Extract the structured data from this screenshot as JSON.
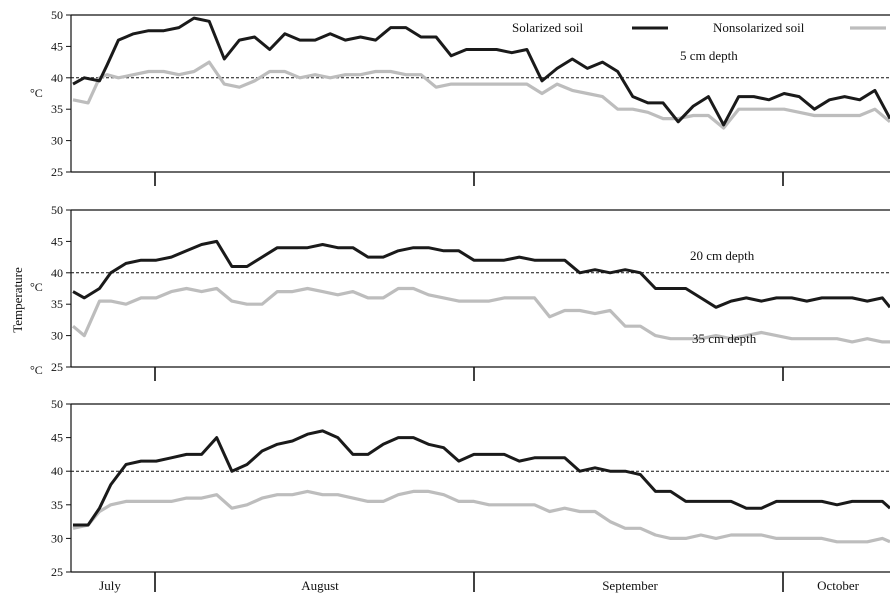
{
  "chart_data": {
    "type": "line",
    "ylabel": "Temperature",
    "unit": "°C",
    "months": [
      "July",
      "August",
      "September",
      "October"
    ],
    "ylim": [
      25,
      50
    ],
    "yticks": [
      25,
      30,
      35,
      40,
      45,
      50
    ],
    "threshold": 40,
    "x_range_days": [
      0,
      108
    ],
    "legend": {
      "position": "top-right",
      "entries": [
        "Solarized soil",
        "Nonsolarized soil"
      ]
    },
    "colors": {
      "solarized": "#1a1a1a",
      "nonsolarized": "#bdbdbd"
    },
    "panels": [
      {
        "label": "5 cm depth",
        "series": [
          {
            "name": "Solarized soil",
            "x": [
              0,
              1.5,
              3.5,
              4.5,
              6,
              8,
              10,
              12,
              14,
              16,
              18,
              20,
              22,
              24,
              26,
              28,
              30,
              32,
              34,
              36,
              38,
              40,
              42,
              44,
              46,
              48,
              50,
              52,
              54,
              56,
              58,
              60,
              62,
              64,
              66,
              68,
              70,
              72,
              74,
              76,
              78,
              80,
              82,
              84,
              86,
              88,
              90,
              92,
              94,
              96,
              98,
              100,
              102,
              104,
              106,
              108
            ],
            "y": [
              39,
              40,
              39.5,
              42,
              46,
              47,
              47.5,
              47.5,
              48,
              49.5,
              49,
              43,
              46,
              46.5,
              44.5,
              47,
              46,
              46,
              47,
              46,
              46.5,
              46,
              48,
              48,
              46.5,
              46.5,
              43.5,
              44.5,
              44.5,
              44.5,
              44,
              44.5,
              39.5,
              41.5,
              43,
              41.5,
              42.5,
              41,
              37,
              36,
              36,
              33,
              35.5,
              37,
              32.5,
              37,
              37,
              36.5,
              37.5,
              37,
              35,
              36.5,
              37,
              36.5,
              38,
              33.5
            ]
          },
          {
            "name": "Nonsolarized soil",
            "x": [
              0,
              2,
              3.5,
              4.5,
              6,
              8,
              10,
              12,
              14,
              16,
              18,
              20,
              22,
              24,
              26,
              28,
              30,
              32,
              34,
              36,
              38,
              40,
              42,
              44,
              46,
              48,
              50,
              52,
              54,
              56,
              58,
              60,
              62,
              64,
              66,
              68,
              70,
              72,
              74,
              76,
              78,
              80,
              82,
              84,
              86,
              88,
              90,
              92,
              94,
              96,
              98,
              100,
              102,
              104,
              106,
              108
            ],
            "y": [
              36.5,
              36,
              40,
              40.5,
              40,
              40.5,
              41,
              41,
              40.5,
              41,
              42.5,
              39,
              38.5,
              39.5,
              41,
              41,
              40,
              40.5,
              40,
              40.5,
              40.5,
              41,
              41,
              40.5,
              40.5,
              38.5,
              39,
              39,
              39,
              39,
              39,
              39,
              37.5,
              39,
              38,
              37.5,
              37,
              35,
              35,
              34.5,
              33.5,
              33.5,
              34,
              34,
              32,
              35,
              35,
              35,
              35,
              34.5,
              34,
              34,
              34,
              34,
              35,
              33
            ]
          }
        ]
      },
      {
        "label": "20 cm depth",
        "series": [
          {
            "name": "Solarized soil",
            "x": [
              0,
              1.5,
              3.5,
              5,
              7,
              9,
              11,
              13,
              15,
              17,
              19,
              21,
              23,
              25,
              27,
              29,
              31,
              33,
              35,
              37,
              39,
              41,
              43,
              45,
              47,
              49,
              51,
              53,
              55,
              57,
              59,
              61,
              63,
              65,
              67,
              69,
              71,
              73,
              75,
              77,
              79,
              81,
              83,
              85,
              87,
              89,
              91,
              93,
              95,
              97,
              99,
              101,
              103,
              105,
              107,
              108
            ],
            "y": [
              37,
              36,
              37.5,
              40,
              41.5,
              42,
              42,
              42.5,
              43.5,
              44.5,
              45,
              41,
              41,
              42.5,
              44,
              44,
              44,
              44.5,
              44,
              44,
              42.5,
              42.5,
              43.5,
              44,
              44,
              43.5,
              43.5,
              42,
              42,
              42,
              42.5,
              42,
              42,
              42,
              40,
              40.5,
              40,
              40.5,
              40,
              37.5,
              37.5,
              37.5,
              36,
              34.5,
              35.5,
              36,
              35.5,
              36,
              36,
              35.5,
              36,
              36,
              36,
              35.5,
              36,
              34.5
            ]
          },
          {
            "name": "Nonsolarized soil",
            "x": [
              0,
              1.5,
              3.5,
              5,
              7,
              9,
              11,
              13,
              15,
              17,
              19,
              21,
              23,
              25,
              27,
              29,
              31,
              33,
              35,
              37,
              39,
              41,
              43,
              45,
              47,
              49,
              51,
              53,
              55,
              57,
              59,
              61,
              63,
              65,
              67,
              69,
              71,
              73,
              75,
              77,
              79,
              81,
              83,
              85,
              87,
              89,
              91,
              93,
              95,
              97,
              99,
              101,
              103,
              105,
              107,
              108
            ],
            "y": [
              31.5,
              30,
              35.5,
              35.5,
              35,
              36,
              36,
              37,
              37.5,
              37,
              37.5,
              35.5,
              35,
              35,
              37,
              37,
              37.5,
              37,
              36.5,
              37,
              36,
              36,
              37.5,
              37.5,
              36.5,
              36,
              35.5,
              35.5,
              35.5,
              36,
              36,
              36,
              33,
              34,
              34,
              33.5,
              34,
              31.5,
              31.5,
              30,
              29.5,
              29.5,
              29.5,
              30,
              29.5,
              30,
              30.5,
              30,
              29.5,
              29.5,
              29.5,
              29.5,
              29,
              29.5,
              29,
              29
            ]
          }
        ]
      },
      {
        "label": "35 cm depth",
        "series": [
          {
            "name": "Solarized soil",
            "x": [
              0,
              2,
              3.5,
              5,
              7,
              9,
              11,
              13,
              15,
              17,
              19,
              21,
              23,
              25,
              27,
              29,
              31,
              33,
              35,
              37,
              39,
              41,
              43,
              45,
              47,
              49,
              51,
              53,
              55,
              57,
              59,
              61,
              63,
              65,
              67,
              69,
              71,
              73,
              75,
              77,
              79,
              81,
              83,
              85,
              87,
              89,
              91,
              93,
              95,
              97,
              99,
              101,
              103,
              105,
              107,
              108
            ],
            "y": [
              32,
              32,
              34.5,
              38,
              41,
              41.5,
              41.5,
              42,
              42.5,
              42.5,
              45,
              40,
              41,
              43,
              44,
              44.5,
              45.5,
              46,
              45,
              42.5,
              42.5,
              44,
              45,
              45,
              44,
              43.5,
              41.5,
              42.5,
              42.5,
              42.5,
              41.5,
              42,
              42,
              42,
              40,
              40.5,
              40,
              40,
              39.5,
              37,
              37,
              35.5,
              35.5,
              35.5,
              35.5,
              34.5,
              34.5,
              35.5,
              35.5,
              35.5,
              35.5,
              35,
              35.5,
              35.5,
              35.5,
              34.5
            ]
          },
          {
            "name": "Nonsolarized soil",
            "x": [
              0,
              2,
              3.5,
              5,
              7,
              9,
              11,
              13,
              15,
              17,
              19,
              21,
              23,
              25,
              27,
              29,
              31,
              33,
              35,
              37,
              39,
              41,
              43,
              45,
              47,
              49,
              51,
              53,
              55,
              57,
              59,
              61,
              63,
              65,
              67,
              69,
              71,
              73,
              75,
              77,
              79,
              81,
              83,
              85,
              87,
              89,
              91,
              93,
              95,
              97,
              99,
              101,
              103,
              105,
              107,
              108
            ],
            "y": [
              31.5,
              32,
              34,
              35,
              35.5,
              35.5,
              35.5,
              35.5,
              36,
              36,
              36.5,
              34.5,
              35,
              36,
              36.5,
              36.5,
              37,
              36.5,
              36.5,
              36,
              35.5,
              35.5,
              36.5,
              37,
              37,
              36.5,
              35.5,
              35.5,
              35,
              35,
              35,
              35,
              34,
              34.5,
              34,
              34,
              32.5,
              31.5,
              31.5,
              30.5,
              30,
              30,
              30.5,
              30,
              30.5,
              30.5,
              30.5,
              30,
              30,
              30,
              30,
              29.5,
              29.5,
              29.5,
              30,
              29.5
            ]
          }
        ]
      }
    ]
  }
}
